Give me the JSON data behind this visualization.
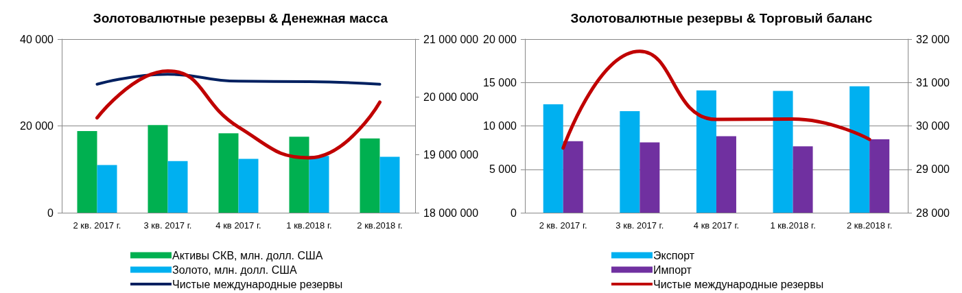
{
  "chart_data": [
    {
      "type": "bar",
      "title": "Золотовалютные резервы & Денежная масса",
      "categories": [
        "2 кв. 2017 г.",
        "3 кв. 2017 г.",
        "4 кв 2017 г.",
        "1 кв.2018 г.",
        "2 кв.2018 г."
      ],
      "series": [
        {
          "name": "Активы СКВ, млн. долл. США",
          "color": "#00b050",
          "values": [
            18800,
            20200,
            18300,
            17500,
            17100
          ]
        },
        {
          "name": "Золото, млн. долл. США",
          "color": "#00b0f0",
          "values": [
            11000,
            11900,
            12400,
            13100,
            12900
          ]
        },
        {
          "name": "Чистые международные резервы",
          "type": "line",
          "color": "#002060",
          "values": [
            29600,
            31900,
            30300,
            30200,
            29600
          ]
        },
        {
          "type": "line",
          "axis": "y2",
          "color": "#c00000",
          "values": [
            19640000,
            20450000,
            19480000,
            18950000,
            19910000
          ]
        }
      ],
      "ylim": [
        0,
        40000
      ],
      "yticks": [
        {
          "value": 0,
          "label": "0"
        },
        {
          "value": 20000,
          "label": "20 000"
        },
        {
          "value": 40000,
          "label": "40 000"
        }
      ],
      "y2lim": [
        18000000,
        21000000
      ],
      "y2ticks": [
        {
          "value": 18000000,
          "label": "18 000 000"
        },
        {
          "value": 19000000,
          "label": "19 000 000"
        },
        {
          "value": 20000000,
          "label": "20 000 000"
        },
        {
          "value": 21000000,
          "label": "21 000 000"
        }
      ],
      "grid": "y",
      "legend": "bottom",
      "marker": "none"
    },
    {
      "type": "bar",
      "title": "Золотовалютные резервы & Торговый баланс",
      "categories": [
        "2 кв. 2017 г.",
        "3 кв. 2017 г.",
        "4 кв 2017 г.",
        "1 кв.2018 г.",
        "2 кв.2018 г."
      ],
      "series": [
        {
          "name": "Экспорт",
          "color": "#00b0f0",
          "values": [
            12500,
            11690,
            14100,
            14030,
            14560
          ]
        },
        {
          "name": "Импорт",
          "color": "#7030a0",
          "values": [
            8240,
            8100,
            8810,
            7640,
            8450
          ]
        },
        {
          "name": "Чистые международные резервы",
          "type": "line",
          "axis": "y2",
          "color": "#c00000",
          "values": [
            29490,
            31720,
            30150,
            30160,
            29690
          ]
        }
      ],
      "ylim": [
        0,
        20000
      ],
      "yticks": [
        {
          "value": 0,
          "label": "0"
        },
        {
          "value": 5000,
          "label": "5 000"
        },
        {
          "value": 10000,
          "label": "10 000"
        },
        {
          "value": 15000,
          "label": "15 000"
        },
        {
          "value": 20000,
          "label": "20 000"
        }
      ],
      "y2lim": [
        28000,
        32000
      ],
      "y2ticks": [
        {
          "value": 28000,
          "label": "28 000"
        },
        {
          "value": 29000,
          "label": "29 000"
        },
        {
          "value": 30000,
          "label": "30 000"
        },
        {
          "value": 31000,
          "label": "31 000"
        },
        {
          "value": 32000,
          "label": "32 000"
        }
      ],
      "grid": "y",
      "legend": "bottom",
      "marker": "none"
    }
  ]
}
